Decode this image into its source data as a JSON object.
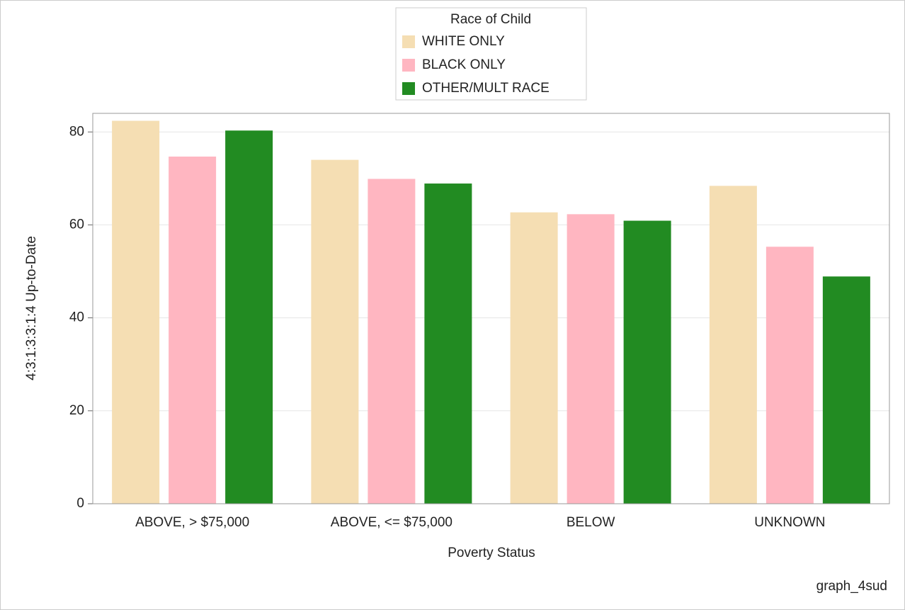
{
  "chart_data": {
    "type": "bar",
    "categories": [
      "ABOVE, > $75,000",
      "ABOVE, <= $75,000",
      "BELOW",
      "UNKNOWN"
    ],
    "series": [
      {
        "name": "WHITE ONLY",
        "color": "#f5deb3",
        "values": [
          82.4,
          74.0,
          62.7,
          68.4
        ]
      },
      {
        "name": "BLACK ONLY",
        "color": "#ffb6c1",
        "values": [
          74.7,
          69.9,
          62.3,
          55.3
        ]
      },
      {
        "name": "OTHER/MULT RACE",
        "color": "#228b22",
        "values": [
          80.3,
          68.9,
          60.9,
          48.9
        ]
      }
    ],
    "legend_title": "Race of Child",
    "x_label": "Poverty Status",
    "y_label": "4:3:1:3:3:1:4 Up-to-Date",
    "footnote": "graph_4sud",
    "ylim": [
      0,
      84
    ],
    "yticks": [
      0,
      20,
      40,
      60,
      80
    ],
    "grid": true,
    "legend_position": "top"
  }
}
